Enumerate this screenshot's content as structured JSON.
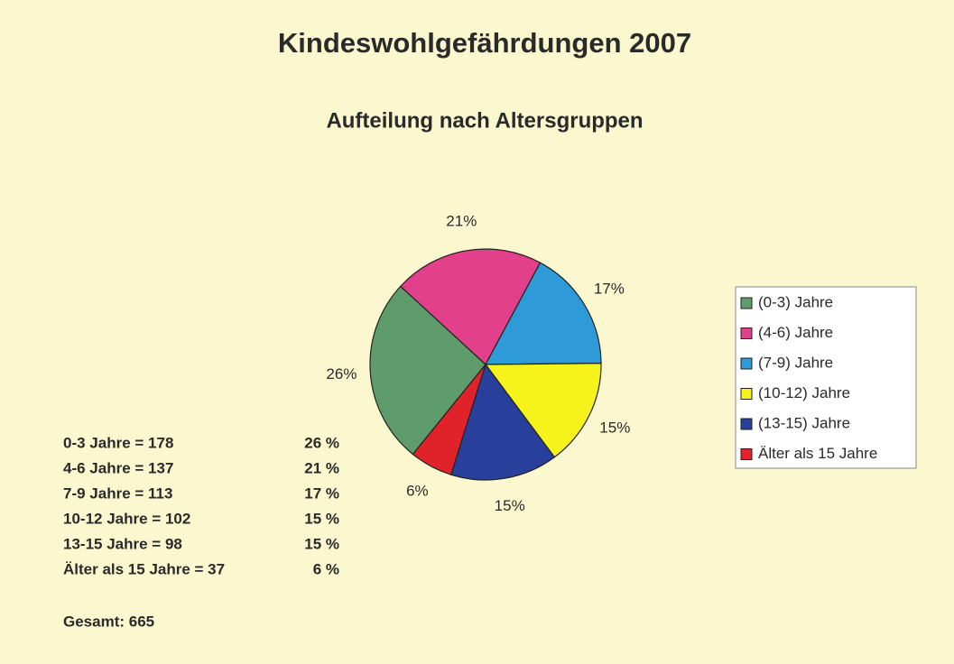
{
  "chart_data": {
    "type": "pie",
    "title": "Kindeswohlgefährdungen 2007",
    "subtitle": "Aufteilung nach Altersgruppen",
    "categories": [
      "(0-3) Jahre",
      "(4-6) Jahre",
      "(7-9) Jahre",
      "(10-12) Jahre",
      "(13-15) Jahre",
      "Älter als 15 Jahre"
    ],
    "values": [
      26,
      21,
      17,
      15,
      15,
      6
    ],
    "value_labels": [
      "26%",
      "21%",
      "17%",
      "15%",
      "15%",
      "6%"
    ],
    "colors": [
      "#5e9c6b",
      "#e2408b",
      "#2f9ad8",
      "#f6f21c",
      "#283f9c",
      "#e0232a"
    ],
    "legend": "right"
  },
  "summary": {
    "rows": [
      {
        "label": "0-3 Jahre = 178",
        "percent": "26 %"
      },
      {
        "label": "4-6 Jahre = 137",
        "percent": "21 %"
      },
      {
        "label": "7-9 Jahre = 113",
        "percent": "17 %"
      },
      {
        "label": "10-12 Jahre = 102",
        "percent": "15 %"
      },
      {
        "label": "13-15 Jahre = 98",
        "percent": "15 %"
      },
      {
        "label": "Älter als 15 Jahre = 37",
        "percent": "6 %"
      }
    ],
    "total": "Gesamt: 665"
  }
}
